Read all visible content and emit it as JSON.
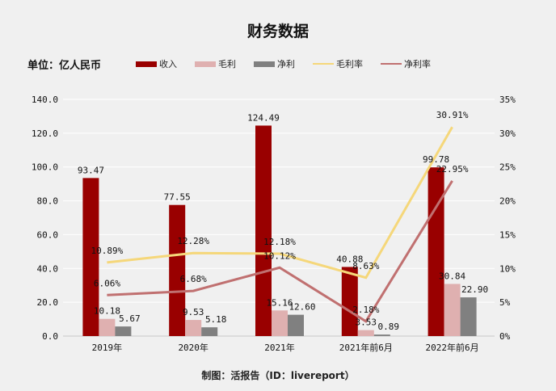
{
  "title": "财务数据",
  "unit": "单位：亿人民币",
  "footer": "制图：活报告（ID：livereport）",
  "chart_data": {
    "type": "bar+line",
    "title": "财务数据",
    "categories": [
      "2019年",
      "2020年",
      "2021年",
      "2021年前6月",
      "2022年前6月"
    ],
    "bar_series": [
      {
        "name": "收入",
        "color": "#990000",
        "values": [
          93.47,
          77.55,
          124.49,
          40.88,
          99.78
        ]
      },
      {
        "name": "毛利",
        "color": "#dfb0b0",
        "values": [
          10.18,
          9.53,
          15.16,
          3.53,
          30.84
        ]
      },
      {
        "name": "净利",
        "color": "#808080",
        "values": [
          5.67,
          5.18,
          12.6,
          0.89,
          22.9
        ]
      }
    ],
    "line_series": [
      {
        "name": "毛利率",
        "color": "#f5d77a",
        "values": [
          10.89,
          12.28,
          12.18,
          8.63,
          30.91
        ]
      },
      {
        "name": "净利率",
        "color": "#c07070",
        "values": [
          6.06,
          6.68,
          10.12,
          2.18,
          22.95
        ]
      }
    ],
    "y_left": {
      "min": 0,
      "max": 140,
      "step": 20,
      "ticks": [
        "0.0",
        "20.0",
        "40.0",
        "60.0",
        "80.0",
        "100.0",
        "120.0",
        "140.0"
      ]
    },
    "y_right": {
      "min": 0,
      "max": 35,
      "step": 5,
      "ticks": [
        "0%",
        "5%",
        "10%",
        "15%",
        "20%",
        "25%",
        "30%",
        "35%"
      ]
    },
    "grid": true,
    "legend_position": "top"
  }
}
